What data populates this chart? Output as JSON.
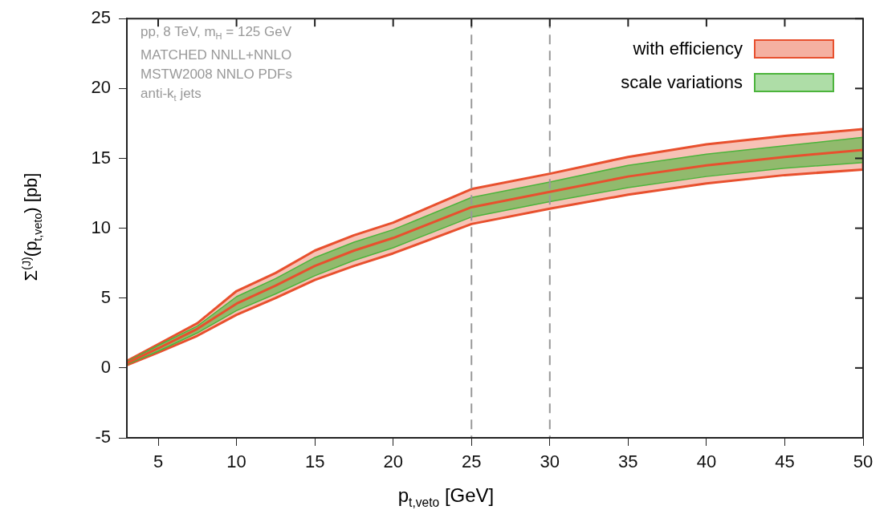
{
  "chart_data": {
    "type": "line",
    "xlabel": "p$_{t,veto}$ [GeV]",
    "ylabel": "Σ$^{(J)}$(p$_{t,veto}$) [pb]",
    "x": [
      3,
      5,
      7.5,
      10,
      12.5,
      15,
      17.5,
      20,
      25,
      30,
      35,
      40,
      45,
      50
    ],
    "series": [
      {
        "name": "with efficiency",
        "color": "#e8502e",
        "values": [
          0.35,
          1.4,
          2.8,
          4.6,
          5.9,
          7.3,
          8.4,
          9.3,
          11.5,
          12.6,
          13.7,
          14.5,
          15.1,
          15.6
        ],
        "lower": [
          0.2,
          1.1,
          2.3,
          3.8,
          5.0,
          6.3,
          7.3,
          8.2,
          10.3,
          11.4,
          12.4,
          13.2,
          13.8,
          14.2
        ],
        "upper": [
          0.5,
          1.7,
          3.2,
          5.5,
          6.8,
          8.4,
          9.5,
          10.4,
          12.8,
          13.9,
          15.1,
          16.0,
          16.6,
          17.1
        ]
      },
      {
        "name": "scale variations",
        "color": "#4cb43c",
        "values": [
          null,
          null,
          null,
          null,
          null,
          null,
          null,
          null,
          null,
          null,
          null,
          null,
          null,
          null
        ],
        "lower": [
          0.25,
          1.2,
          2.5,
          4.1,
          5.3,
          6.6,
          7.7,
          8.6,
          10.8,
          11.9,
          12.9,
          13.7,
          14.3,
          14.7
        ],
        "upper": [
          0.45,
          1.6,
          3.0,
          5.1,
          6.4,
          7.9,
          9.0,
          9.9,
          12.2,
          13.3,
          14.5,
          15.3,
          15.9,
          16.5
        ]
      }
    ],
    "xlim": [
      3,
      50
    ],
    "xticks": [
      5,
      10,
      15,
      20,
      25,
      30,
      35,
      40,
      45,
      50
    ],
    "ylim": [
      -5,
      25
    ],
    "yticks": [
      -5,
      0,
      5,
      10,
      15,
      20,
      25
    ],
    "ref_lines": [
      {
        "axis": "x",
        "value": 25,
        "color": "#999999",
        "line_style": "dashed"
      },
      {
        "axis": "x",
        "value": 30,
        "color": "#999999",
        "line_style": "dashed"
      }
    ],
    "annotations": [
      "pp, 8 TeV, m$_{H}$ = 125 GeV",
      "MATCHED NNLL+NNLO",
      "MSTW2008 NNLO PDFs",
      "anti-k$_{t}$ jets"
    ],
    "legend": "top right",
    "grid": false,
    "line_style": "solid",
    "marker": "none"
  }
}
